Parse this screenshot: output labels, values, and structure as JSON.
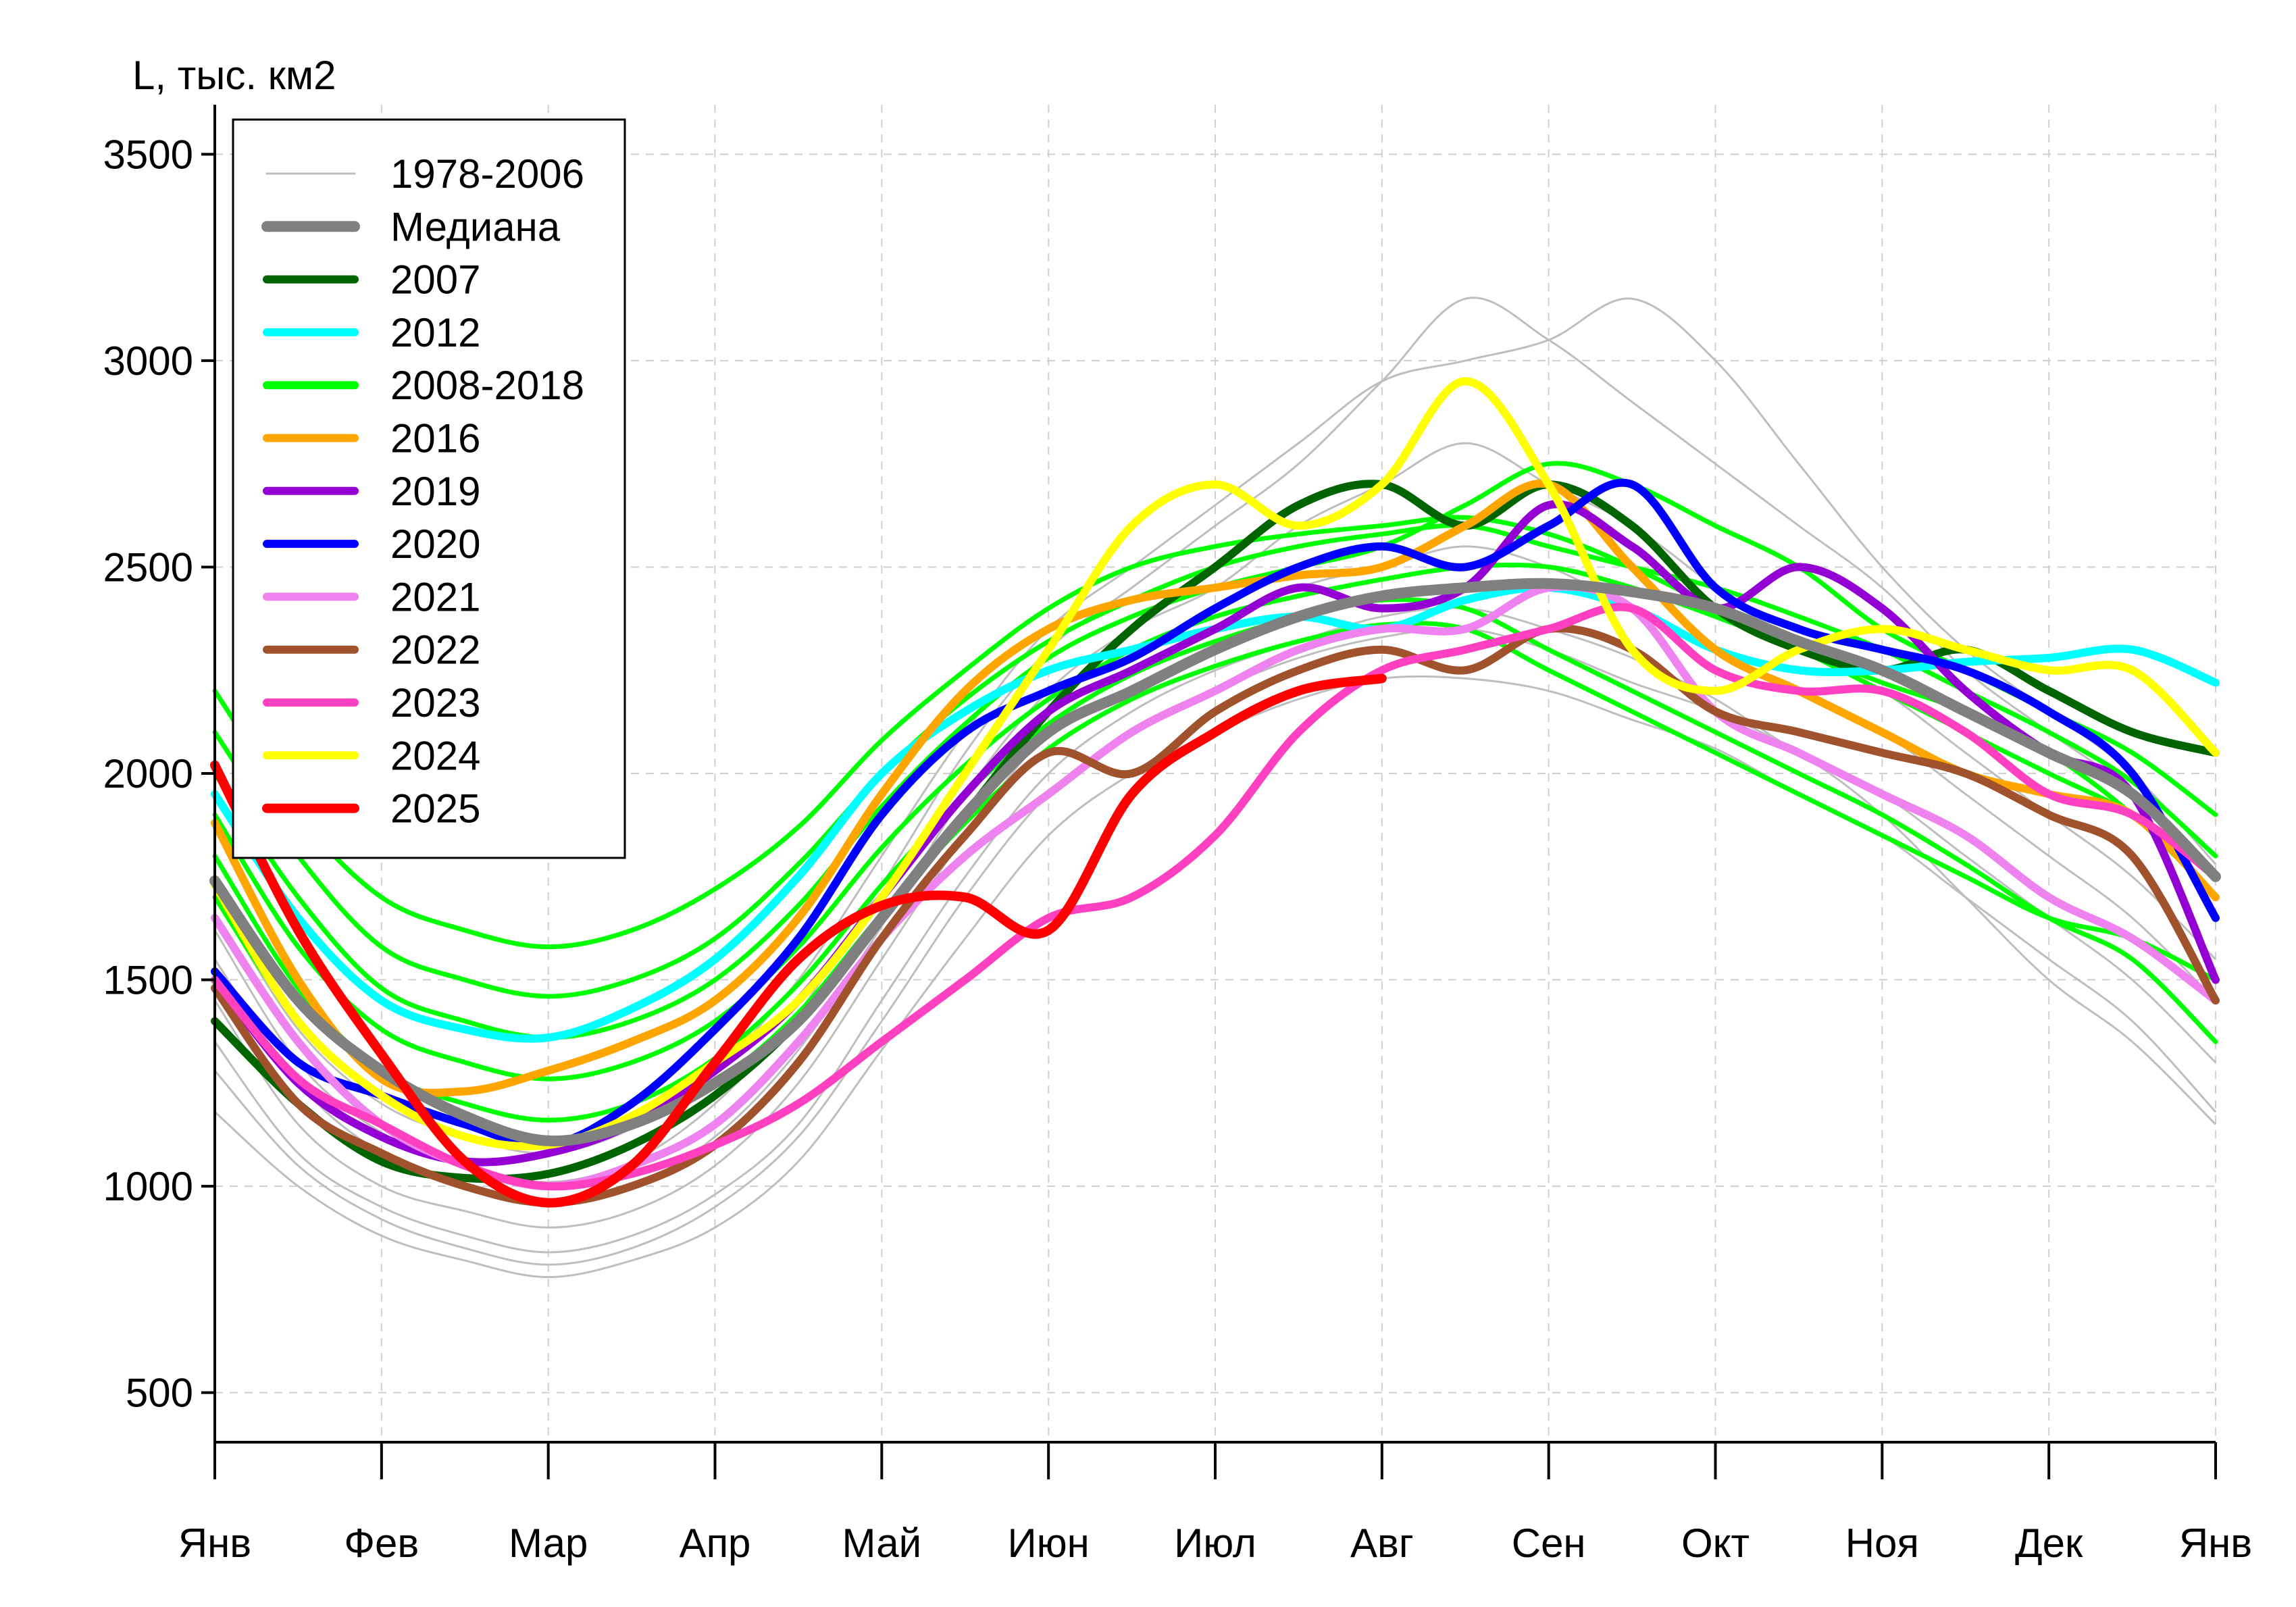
{
  "chart_data": {
    "type": "line",
    "ylabel": "L, тыс. км2",
    "xlabel": "",
    "ylim": [
      380,
      3620
    ],
    "yticks": [
      500,
      1000,
      1500,
      2000,
      2500,
      3000,
      3500
    ],
    "ytick_labels": [
      "500",
      "1000",
      "1500",
      "2000",
      "2500",
      "3000",
      "3500"
    ],
    "xlim": [
      0,
      12
    ],
    "xticks": [
      0,
      1,
      2,
      3,
      4,
      5,
      6,
      7,
      8,
      9,
      10,
      11,
      12
    ],
    "xtick_labels": [
      "Янв",
      "Фев",
      "Мар",
      "Апр",
      "Май",
      "Июн",
      "Июл",
      "Авг",
      "Сен",
      "Окт",
      "Ноя",
      "Дек",
      "Янв"
    ],
    "grid": true,
    "legend_position": "top-left",
    "legend": [
      {
        "label": "1978-2006",
        "color": "#bebebe",
        "width": 3
      },
      {
        "label": "Медиана",
        "color": "#808080",
        "width": 16
      },
      {
        "label": "2007",
        "color": "#006400",
        "width": 12
      },
      {
        "label": "2012",
        "color": "#00ffff",
        "width": 12
      },
      {
        "label": "2008-2018",
        "color": "#00ff00",
        "width": 12
      },
      {
        "label": "2016",
        "color": "#ffa500",
        "width": 12
      },
      {
        "label": "2019",
        "color": "#9400d3",
        "width": 12
      },
      {
        "label": "2020",
        "color": "#0000ff",
        "width": 12
      },
      {
        "label": "2021",
        "color": "#ee82ee",
        "width": 12
      },
      {
        "label": "2022",
        "color": "#a0522d",
        "width": 12
      },
      {
        "label": "2023",
        "color": "#ff40c0",
        "width": 12
      },
      {
        "label": "2024",
        "color": "#ffff00",
        "width": 12
      },
      {
        "label": "2025",
        "color": "#ff0000",
        "width": 14
      }
    ],
    "x_month_positions": [
      0,
      0.5,
      1,
      1.5,
      2,
      2.5,
      3,
      3.5,
      4,
      4.5,
      5,
      5.5,
      6,
      6.5,
      7,
      7.5,
      8,
      8.5,
      9,
      9.5,
      10,
      10.5,
      11,
      11.5,
      12
    ],
    "background_1978_2006": [
      [
        1180,
        1000,
        880,
        820,
        780,
        820,
        900,
        1060,
        1330,
        1600,
        1850,
        2000,
        2100,
        2180,
        2230,
        2230,
        2200,
        2130,
        2060,
        1950,
        1850,
        1700,
        1550,
        1400,
        1180
      ],
      [
        1350,
        1080,
        950,
        880,
        840,
        880,
        980,
        1150,
        1450,
        1750,
        2000,
        2150,
        2250,
        2320,
        2380,
        2400,
        2350,
        2280,
        2180,
        2050,
        1950,
        1800,
        1650,
        1500,
        1300
      ],
      [
        1450,
        1150,
        1000,
        940,
        900,
        940,
        1050,
        1250,
        1550,
        1850,
        2100,
        2250,
        2350,
        2450,
        2500,
        2550,
        2500,
        2400,
        2300,
        2200,
        2100,
        1950,
        1800,
        1650,
        1450
      ],
      [
        1550,
        1250,
        1080,
        1000,
        960,
        1000,
        1120,
        1330,
        1630,
        1950,
        2200,
        2350,
        2450,
        2600,
        2700,
        2800,
        2700,
        2600,
        2450,
        2300,
        2200,
        2050,
        1900,
        1750,
        1550
      ],
      [
        1620,
        1300,
        1130,
        1050,
        1010,
        1060,
        1200,
        1420,
        1730,
        2050,
        2300,
        2450,
        2600,
        2750,
        2950,
        3150,
        3050,
        2900,
        2750,
        2600,
        2450,
        2250,
        2100,
        1950,
        1700
      ],
      [
        1700,
        1380,
        1200,
        1120,
        1080,
        1140,
        1280,
        1500,
        1800,
        2100,
        2350,
        2500,
        2650,
        2800,
        2950,
        3000,
        3050,
        3150,
        3000,
        2750,
        2500,
        2300,
        2150,
        2000,
        1780
      ],
      [
        1280,
        1050,
        920,
        850,
        810,
        850,
        950,
        1120,
        1400,
        1700,
        1950,
        2100,
        2200,
        2280,
        2330,
        2350,
        2300,
        2220,
        2150,
        2050,
        1900,
        1700,
        1500,
        1350,
        1150
      ]
    ],
    "series": [
      {
        "name": "2008-2018",
        "color": "#00ff00",
        "width": 7,
        "values": [
          2200,
          1900,
          1700,
          1620,
          1580,
          1620,
          1720,
          1870,
          2080,
          2250,
          2400,
          2500,
          2550,
          2580,
          2600,
          2620,
          2580,
          2500,
          2400,
          2300,
          2220,
          2150,
          2050,
          1900,
          1700
        ]
      },
      {
        "name": "2008-2018",
        "color": "#00ff00",
        "width": 7,
        "values": [
          2100,
          1800,
          1580,
          1500,
          1460,
          1500,
          1600,
          1780,
          2000,
          2180,
          2320,
          2420,
          2500,
          2550,
          2580,
          2600,
          2550,
          2500,
          2450,
          2380,
          2300,
          2200,
          2100,
          1980,
          1800
        ]
      },
      {
        "name": "2008-2018",
        "color": "#00ff00",
        "width": 7,
        "values": [
          2000,
          1700,
          1480,
          1400,
          1360,
          1400,
          1500,
          1680,
          1920,
          2120,
          2280,
          2380,
          2450,
          2500,
          2550,
          2650,
          2750,
          2700,
          2600,
          2500,
          2350,
          2250,
          2150,
          2050,
          1900
        ]
      },
      {
        "name": "2008-2018",
        "color": "#00ff00",
        "width": 7,
        "values": [
          1900,
          1580,
          1380,
          1300,
          1260,
          1300,
          1400,
          1580,
          1820,
          2020,
          2180,
          2300,
          2380,
          2430,
          2470,
          2500,
          2500,
          2450,
          2380,
          2300,
          2200,
          2100,
          2000,
          1900,
          1750
        ]
      },
      {
        "name": "2008-2018",
        "color": "#00ff00",
        "width": 7,
        "values": [
          1800,
          1480,
          1280,
          1200,
          1160,
          1200,
          1310,
          1490,
          1730,
          1950,
          2120,
          2240,
          2320,
          2380,
          2420,
          2400,
          2300,
          2200,
          2100,
          2000,
          1900,
          1780,
          1650,
          1550,
          1350
        ]
      },
      {
        "name": "2008-2018",
        "color": "#00ff00",
        "width": 7,
        "values": [
          1700,
          1400,
          1220,
          1150,
          1110,
          1150,
          1250,
          1420,
          1660,
          1880,
          2060,
          2180,
          2260,
          2320,
          2360,
          2350,
          2250,
          2150,
          2050,
          1950,
          1850,
          1750,
          1650,
          1600,
          1500
        ]
      },
      {
        "name": "2007",
        "color": "#006400",
        "width": 12,
        "values": [
          1400,
          1200,
          1060,
          1020,
          1030,
          1100,
          1220,
          1400,
          1650,
          1900,
          2150,
          2350,
          2500,
          2650,
          2700,
          2600,
          2700,
          2600,
          2400,
          2300,
          2250,
          2300,
          2200,
          2100,
          2050
        ]
      },
      {
        "name": "2012",
        "color": "#00ffff",
        "width": 12,
        "values": [
          1950,
          1650,
          1450,
          1380,
          1360,
          1430,
          1550,
          1750,
          2000,
          2150,
          2250,
          2300,
          2350,
          2380,
          2350,
          2420,
          2450,
          2400,
          2300,
          2250,
          2250,
          2270,
          2280,
          2300,
          2220
        ]
      },
      {
        "name": "2016",
        "color": "#ffa500",
        "width": 12,
        "values": [
          1880,
          1500,
          1260,
          1230,
          1280,
          1350,
          1450,
          1650,
          1950,
          2200,
          2350,
          2420,
          2450,
          2480,
          2500,
          2600,
          2700,
          2500,
          2300,
          2200,
          2100,
          2000,
          1950,
          1900,
          1700
        ]
      },
      {
        "name": "2019",
        "color": "#9400d3",
        "width": 12,
        "values": [
          1500,
          1250,
          1120,
          1060,
          1080,
          1150,
          1280,
          1450,
          1700,
          1950,
          2150,
          2250,
          2350,
          2450,
          2400,
          2450,
          2650,
          2550,
          2400,
          2500,
          2400,
          2200,
          2050,
          1950,
          1500
        ]
      },
      {
        "name": "2020",
        "color": "#0000ff",
        "width": 12,
        "values": [
          1520,
          1300,
          1220,
          1150,
          1100,
          1200,
          1380,
          1600,
          1900,
          2100,
          2200,
          2280,
          2400,
          2500,
          2550,
          2500,
          2600,
          2700,
          2450,
          2350,
          2300,
          2250,
          2150,
          2000,
          1650
        ]
      },
      {
        "name": "2021",
        "color": "#ee82ee",
        "width": 12,
        "values": [
          1650,
          1350,
          1150,
          1050,
          1000,
          1050,
          1150,
          1350,
          1600,
          1800,
          1950,
          2100,
          2200,
          2300,
          2350,
          2350,
          2450,
          2400,
          2150,
          2050,
          1950,
          1850,
          1700,
          1600,
          1450
        ]
      },
      {
        "name": "2022",
        "color": "#a0522d",
        "width": 12,
        "values": [
          1480,
          1200,
          1080,
          1000,
          960,
          1000,
          1100,
          1300,
          1600,
          1850,
          2050,
          2000,
          2150,
          2250,
          2300,
          2250,
          2350,
          2300,
          2150,
          2100,
          2050,
          2000,
          1900,
          1800,
          1450
        ]
      },
      {
        "name": "2023",
        "color": "#ff40c0",
        "width": 12,
        "values": [
          1500,
          1260,
          1150,
          1050,
          1000,
          1030,
          1100,
          1200,
          1350,
          1500,
          1650,
          1700,
          1850,
          2100,
          2250,
          2300,
          2350,
          2400,
          2250,
          2200,
          2200,
          2100,
          1950,
          1900,
          1750
        ]
      },
      {
        "name": "2024",
        "color": "#ffff00",
        "width": 12,
        "values": [
          1730,
          1400,
          1220,
          1120,
          1100,
          1170,
          1300,
          1450,
          1700,
          2000,
          2300,
          2600,
          2700,
          2600,
          2700,
          2950,
          2700,
          2300,
          2200,
          2300,
          2350,
          2300,
          2250,
          2250,
          2050
        ]
      },
      {
        "name": "Медиана",
        "color": "#808080",
        "width": 16,
        "values": [
          1740,
          1450,
          1280,
          1170,
          1110,
          1150,
          1250,
          1400,
          1650,
          1900,
          2100,
          2200,
          2300,
          2380,
          2430,
          2450,
          2460,
          2440,
          2400,
          2320,
          2250,
          2150,
          2050,
          1950,
          1750
        ]
      },
      {
        "name": "2025",
        "color": "#ff0000",
        "width": 14,
        "values": [
          2020,
          1620,
          1320,
          1060,
          960,
          1050,
          1300,
          1550,
          1680,
          1700,
          1620,
          1950,
          2100,
          2200,
          2230
        ]
      }
    ]
  }
}
